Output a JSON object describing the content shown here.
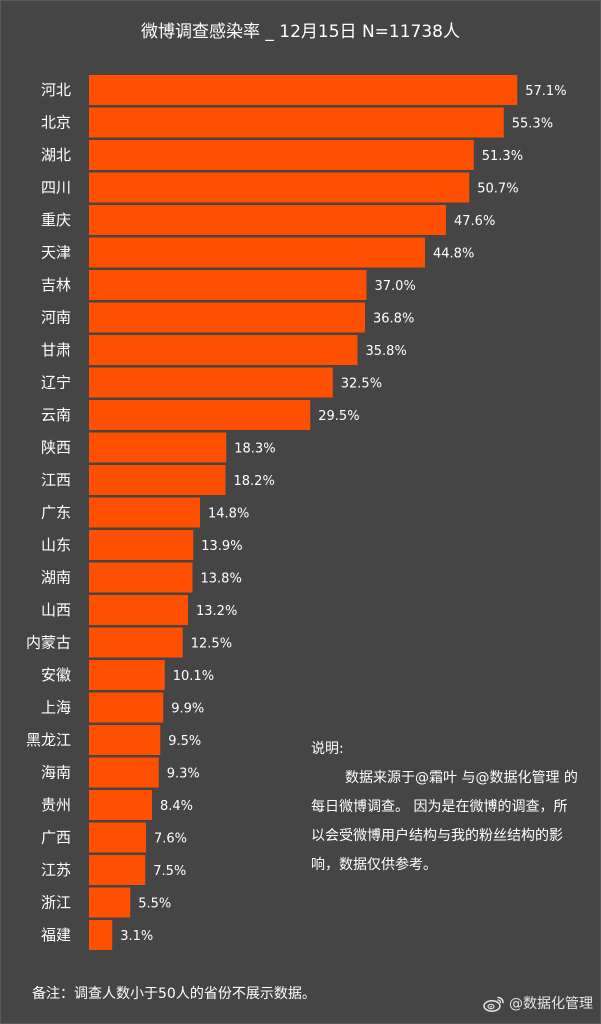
{
  "chart_data": {
    "type": "bar",
    "orientation": "horizontal",
    "title": "微博调查感染率 _ 12月15日 N=11738人",
    "categories": [
      "河北",
      "北京",
      "湖北",
      "四川",
      "重庆",
      "天津",
      "吉林",
      "河南",
      "甘肃",
      "辽宁",
      "云南",
      "陕西",
      "江西",
      "广东",
      "山东",
      "湖南",
      "山西",
      "内蒙古",
      "安徽",
      "上海",
      "黑龙江",
      "海南",
      "贵州",
      "广西",
      "江苏",
      "浙江",
      "福建"
    ],
    "values": [
      57.1,
      55.3,
      51.3,
      50.7,
      47.6,
      44.8,
      37.0,
      36.8,
      35.8,
      32.5,
      29.5,
      18.3,
      18.2,
      14.8,
      13.9,
      13.8,
      13.2,
      12.5,
      10.1,
      9.9,
      9.5,
      9.3,
      8.4,
      7.6,
      7.5,
      5.5,
      3.1
    ],
    "value_labels": [
      "57.1%",
      "55.3%",
      "51.3%",
      "50.7%",
      "47.6%",
      "44.8%",
      "37.0%",
      "36.8%",
      "35.8%",
      "32.5%",
      "29.5%",
      "18.3%",
      "18.2%",
      "14.8%",
      "13.9%",
      "13.8%",
      "13.2%",
      "12.5%",
      "10.1%",
      "9.9%",
      "9.5%",
      "9.3%",
      "8.4%",
      "7.6%",
      "7.5%",
      "5.5%",
      "3.1%"
    ],
    "xlabel": "",
    "ylabel": "",
    "grid": false,
    "bar_color": "#ff4f00",
    "background_color": "#454545"
  },
  "note": {
    "heading": "说明:",
    "body": "数据来源于@霜叶 与@数据化管理 的每日微博调查。 因为是在微博的调查，所以会受微博用户结构与我的粉丝结构的影响，数据仅供参考。"
  },
  "footnote": "备注：调查人数小于50人的省份不展示数据。",
  "watermark": {
    "icon": "weibo-icon",
    "text": "@数据化管理"
  }
}
